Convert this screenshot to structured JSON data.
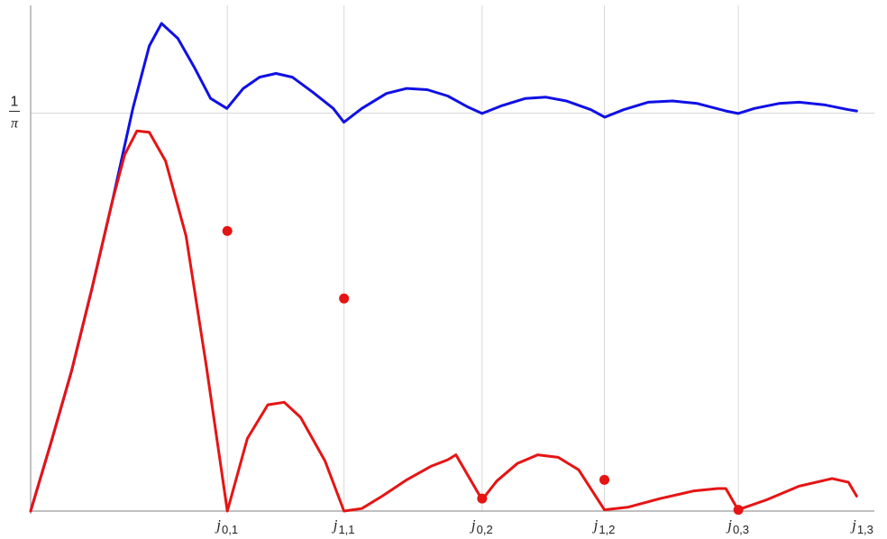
{
  "chart_data": {
    "type": "line",
    "title": "",
    "xlabel": "",
    "ylabel": "",
    "xlim": [
      0,
      10.17
    ],
    "ylim": [
      0,
      0.442
    ],
    "grid": true,
    "x_ticks": [
      {
        "value": 2.4048,
        "base": "j",
        "sub": "0,1"
      },
      {
        "value": 3.8317,
        "base": "j",
        "sub": "1,1"
      },
      {
        "value": 5.5201,
        "base": "j",
        "sub": "0,2"
      },
      {
        "value": 7.0156,
        "base": "j",
        "sub": "1,2"
      },
      {
        "value": 8.6537,
        "base": "j",
        "sub": "0,3"
      },
      {
        "value": 10.1735,
        "base": "j",
        "sub": "1,3"
      }
    ],
    "y_ticks": [
      {
        "value": 0.31831,
        "num": "1",
        "den": "π"
      }
    ],
    "series": [
      {
        "color": "#1010e6",
        "points": [
          [
            0,
            0
          ],
          [
            0.25,
            0.055
          ],
          [
            0.5,
            0.112
          ],
          [
            0.75,
            0.178
          ],
          [
            1.0,
            0.248
          ],
          [
            1.25,
            0.322
          ],
          [
            1.45,
            0.372
          ],
          [
            1.6,
            0.39
          ],
          [
            1.8,
            0.378
          ],
          [
            2.0,
            0.355
          ],
          [
            2.2,
            0.33
          ],
          [
            2.4,
            0.322
          ],
          [
            2.6,
            0.338
          ],
          [
            2.8,
            0.347
          ],
          [
            3.0,
            0.35
          ],
          [
            3.2,
            0.347
          ],
          [
            3.45,
            0.335
          ],
          [
            3.7,
            0.322
          ],
          [
            3.83,
            0.311
          ],
          [
            4.05,
            0.322
          ],
          [
            4.35,
            0.334
          ],
          [
            4.6,
            0.338
          ],
          [
            4.85,
            0.337
          ],
          [
            5.1,
            0.332
          ],
          [
            5.35,
            0.323
          ],
          [
            5.52,
            0.318
          ],
          [
            5.75,
            0.324
          ],
          [
            6.05,
            0.33
          ],
          [
            6.3,
            0.331
          ],
          [
            6.55,
            0.328
          ],
          [
            6.85,
            0.321
          ],
          [
            7.02,
            0.315
          ],
          [
            7.25,
            0.321
          ],
          [
            7.55,
            0.327
          ],
          [
            7.85,
            0.328
          ],
          [
            8.15,
            0.326
          ],
          [
            8.5,
            0.32
          ],
          [
            8.65,
            0.318
          ],
          [
            8.85,
            0.322
          ],
          [
            9.15,
            0.326
          ],
          [
            9.4,
            0.327
          ],
          [
            9.7,
            0.325
          ],
          [
            10.0,
            0.321
          ],
          [
            10.1,
            0.32
          ]
        ]
      },
      {
        "color": "#e61414",
        "points": [
          [
            0,
            0
          ],
          [
            0.25,
            0.055
          ],
          [
            0.5,
            0.112
          ],
          [
            0.75,
            0.178
          ],
          [
            1.0,
            0.248
          ],
          [
            1.15,
            0.285
          ],
          [
            1.3,
            0.304
          ],
          [
            1.45,
            0.303
          ],
          [
            1.65,
            0.28
          ],
          [
            1.9,
            0.22
          ],
          [
            2.15,
            0.115
          ],
          [
            2.4048,
            0
          ],
          [
            2.65,
            0.058
          ],
          [
            2.9,
            0.085
          ],
          [
            3.1,
            0.087
          ],
          [
            3.3,
            0.075
          ],
          [
            3.6,
            0.04
          ],
          [
            3.8317,
            0
          ],
          [
            4.05,
            0.002
          ],
          [
            4.3,
            0.012
          ],
          [
            4.6,
            0.025
          ],
          [
            4.9,
            0.036
          ],
          [
            5.1,
            0.041
          ],
          [
            5.2,
            0.045
          ],
          [
            5.52,
            0.009
          ],
          [
            5.7,
            0.024
          ],
          [
            5.95,
            0.038
          ],
          [
            6.2,
            0.045
          ],
          [
            6.45,
            0.043
          ],
          [
            6.7,
            0.033
          ],
          [
            7.0156,
            0.001
          ],
          [
            7.3,
            0.003
          ],
          [
            7.7,
            0.01
          ],
          [
            8.1,
            0.016
          ],
          [
            8.4,
            0.018
          ],
          [
            8.5,
            0.018
          ],
          [
            8.65,
            0.001
          ],
          [
            9.0,
            0.009
          ],
          [
            9.4,
            0.02
          ],
          [
            9.8,
            0.026
          ],
          [
            10.0,
            0.023
          ],
          [
            10.1,
            0.012
          ]
        ]
      }
    ],
    "points": {
      "color": "#e61414",
      "values": [
        [
          2.4048,
          0.224
        ],
        [
          3.8317,
          0.17
        ],
        [
          5.5201,
          0.01
        ],
        [
          7.0156,
          0.025
        ],
        [
          8.6537,
          0.001
        ]
      ]
    }
  }
}
